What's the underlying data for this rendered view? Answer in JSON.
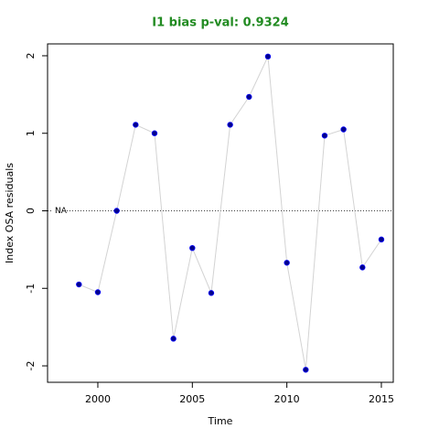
{
  "chart_data": {
    "type": "line",
    "title": "I1 bias p-val: 0.9324",
    "title_color": "#228b22",
    "x_label": "Time",
    "y_label": "Index OSA residuals",
    "annotation": "NA",
    "hline": 0,
    "x": [
      1999,
      2000,
      2001,
      2002,
      2003,
      2004,
      2005,
      2006,
      2007,
      2008,
      2009,
      2010,
      2011,
      2012,
      2013,
      2014,
      2015
    ],
    "series": [
      {
        "color": "#00008b",
        "line_color": "#d3d3d3",
        "values": [
          -0.95,
          -1.05,
          0.0,
          1.11,
          1.0,
          -1.65,
          -0.48,
          -1.06,
          1.11,
          1.47,
          1.99,
          -0.67,
          -2.05,
          0.97,
          1.05,
          -0.73,
          -0.37
        ]
      }
    ],
    "xlim": [
      1997.34,
      2015.63
    ],
    "xticks": [
      2000,
      2005,
      2010,
      2015
    ],
    "ylim": [
      -2.212,
      2.153
    ],
    "yticks": [
      -2,
      -1,
      0,
      1,
      2
    ]
  }
}
